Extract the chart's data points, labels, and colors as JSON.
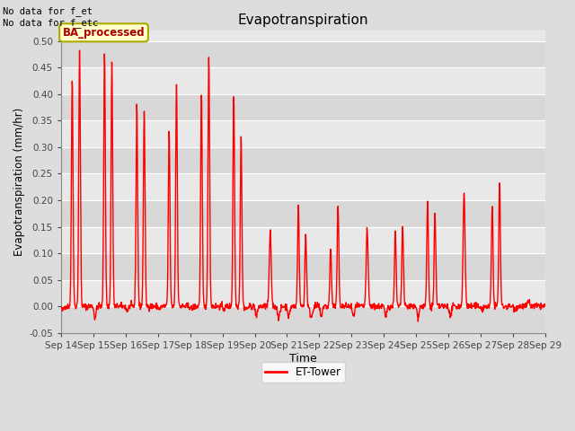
{
  "title": "Evapotranspiration",
  "xlabel": "Time",
  "ylabel": "Evapotranspiration (mm/hr)",
  "ylim": [
    -0.05,
    0.52
  ],
  "yticks": [
    -0.05,
    0.0,
    0.05,
    0.1,
    0.15,
    0.2,
    0.25,
    0.3,
    0.35,
    0.4,
    0.45,
    0.5
  ],
  "ytick_labels": [
    "-0.05",
    "0.00",
    "0.05",
    "0.10",
    "0.15",
    "0.20",
    "0.25",
    "0.30",
    "0.35",
    "0.40",
    "0.45",
    "0.50"
  ],
  "line_color": "#ff0000",
  "line_width": 1.0,
  "fig_bg_color": "#dddddd",
  "plot_bg_color": "#e8e8e8",
  "band_color_a": "#d8d8d8",
  "band_color_b": "#e8e8e8",
  "annotation_top_left": "No data for f_et\nNo data for f_etc",
  "box_label": "BA_processed",
  "box_facecolor": "#ffffcc",
  "box_edgecolor": "#aaaa00",
  "box_text_color": "#aa0000",
  "legend_label": "ET-Tower",
  "legend_line_color": "#ff0000",
  "x_tick_days": [
    14,
    15,
    16,
    17,
    18,
    19,
    20,
    21,
    22,
    23,
    24,
    25,
    26,
    27,
    28,
    29
  ],
  "days_data": [
    {
      "peak1": 0.43,
      "peak2": 0.48,
      "trough": -0.008,
      "neg_after": false
    },
    {
      "peak1": 0.48,
      "peak2": 0.46,
      "trough": -0.022,
      "neg_after": false
    },
    {
      "peak1": 0.38,
      "peak2": 0.37,
      "trough": -0.008,
      "neg_after": false
    },
    {
      "peak1": 0.33,
      "peak2": 0.42,
      "trough": -0.005,
      "neg_after": false
    },
    {
      "peak1": 0.4,
      "peak2": 0.47,
      "trough": -0.005,
      "neg_after": false
    },
    {
      "peak1": 0.4,
      "peak2": 0.32,
      "trough": -0.005,
      "neg_after": true
    },
    {
      "peak1": 0.14,
      "peak2": null,
      "trough": -0.02,
      "neg_after": true
    },
    {
      "peak1": 0.19,
      "peak2": 0.135,
      "trough": -0.02,
      "neg_after": true
    },
    {
      "peak1": 0.11,
      "peak2": 0.19,
      "trough": -0.02,
      "neg_after": false
    },
    {
      "peak1": 0.145,
      "peak2": null,
      "trough": -0.02,
      "neg_after": false
    },
    {
      "peak1": 0.145,
      "peak2": 0.15,
      "trough": -0.02,
      "neg_after": false
    },
    {
      "peak1": 0.2,
      "peak2": 0.175,
      "trough": -0.02,
      "neg_after": false
    },
    {
      "peak1": 0.215,
      "peak2": null,
      "trough": -0.02,
      "neg_after": false
    },
    {
      "peak1": 0.19,
      "peak2": 0.235,
      "trough": -0.005,
      "neg_after": false
    },
    {
      "peak1": 0.01,
      "peak2": null,
      "trough": -0.005,
      "neg_after": false
    }
  ]
}
